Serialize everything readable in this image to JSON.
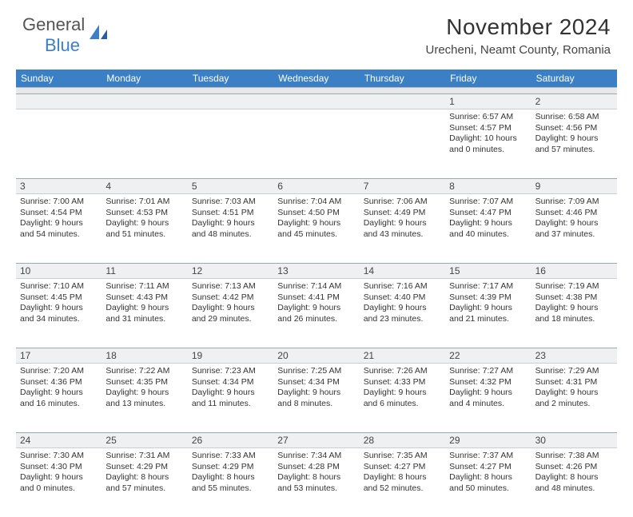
{
  "logo": {
    "word1": "General",
    "word2": "Blue"
  },
  "title": "November 2024",
  "location": "Urecheni, Neamt County, Romania",
  "colors": {
    "header_bg": "#3b7fc4",
    "daynum_bg": "#eef0f1",
    "spacer_bg": "#e8e8e8",
    "border": "#9aa"
  },
  "dow": [
    "Sunday",
    "Monday",
    "Tuesday",
    "Wednesday",
    "Thursday",
    "Friday",
    "Saturday"
  ],
  "weeks": [
    [
      {
        "n": "",
        "lines": [
          "",
          "",
          "",
          ""
        ]
      },
      {
        "n": "",
        "lines": [
          "",
          "",
          "",
          ""
        ]
      },
      {
        "n": "",
        "lines": [
          "",
          "",
          "",
          ""
        ]
      },
      {
        "n": "",
        "lines": [
          "",
          "",
          "",
          ""
        ]
      },
      {
        "n": "",
        "lines": [
          "",
          "",
          "",
          ""
        ]
      },
      {
        "n": "1",
        "lines": [
          "Sunrise: 6:57 AM",
          "Sunset: 4:57 PM",
          "Daylight: 10 hours",
          "and 0 minutes."
        ]
      },
      {
        "n": "2",
        "lines": [
          "Sunrise: 6:58 AM",
          "Sunset: 4:56 PM",
          "Daylight: 9 hours",
          "and 57 minutes."
        ]
      }
    ],
    [
      {
        "n": "3",
        "lines": [
          "Sunrise: 7:00 AM",
          "Sunset: 4:54 PM",
          "Daylight: 9 hours",
          "and 54 minutes."
        ]
      },
      {
        "n": "4",
        "lines": [
          "Sunrise: 7:01 AM",
          "Sunset: 4:53 PM",
          "Daylight: 9 hours",
          "and 51 minutes."
        ]
      },
      {
        "n": "5",
        "lines": [
          "Sunrise: 7:03 AM",
          "Sunset: 4:51 PM",
          "Daylight: 9 hours",
          "and 48 minutes."
        ]
      },
      {
        "n": "6",
        "lines": [
          "Sunrise: 7:04 AM",
          "Sunset: 4:50 PM",
          "Daylight: 9 hours",
          "and 45 minutes."
        ]
      },
      {
        "n": "7",
        "lines": [
          "Sunrise: 7:06 AM",
          "Sunset: 4:49 PM",
          "Daylight: 9 hours",
          "and 43 minutes."
        ]
      },
      {
        "n": "8",
        "lines": [
          "Sunrise: 7:07 AM",
          "Sunset: 4:47 PM",
          "Daylight: 9 hours",
          "and 40 minutes."
        ]
      },
      {
        "n": "9",
        "lines": [
          "Sunrise: 7:09 AM",
          "Sunset: 4:46 PM",
          "Daylight: 9 hours",
          "and 37 minutes."
        ]
      }
    ],
    [
      {
        "n": "10",
        "lines": [
          "Sunrise: 7:10 AM",
          "Sunset: 4:45 PM",
          "Daylight: 9 hours",
          "and 34 minutes."
        ]
      },
      {
        "n": "11",
        "lines": [
          "Sunrise: 7:11 AM",
          "Sunset: 4:43 PM",
          "Daylight: 9 hours",
          "and 31 minutes."
        ]
      },
      {
        "n": "12",
        "lines": [
          "Sunrise: 7:13 AM",
          "Sunset: 4:42 PM",
          "Daylight: 9 hours",
          "and 29 minutes."
        ]
      },
      {
        "n": "13",
        "lines": [
          "Sunrise: 7:14 AM",
          "Sunset: 4:41 PM",
          "Daylight: 9 hours",
          "and 26 minutes."
        ]
      },
      {
        "n": "14",
        "lines": [
          "Sunrise: 7:16 AM",
          "Sunset: 4:40 PM",
          "Daylight: 9 hours",
          "and 23 minutes."
        ]
      },
      {
        "n": "15",
        "lines": [
          "Sunrise: 7:17 AM",
          "Sunset: 4:39 PM",
          "Daylight: 9 hours",
          "and 21 minutes."
        ]
      },
      {
        "n": "16",
        "lines": [
          "Sunrise: 7:19 AM",
          "Sunset: 4:38 PM",
          "Daylight: 9 hours",
          "and 18 minutes."
        ]
      }
    ],
    [
      {
        "n": "17",
        "lines": [
          "Sunrise: 7:20 AM",
          "Sunset: 4:36 PM",
          "Daylight: 9 hours",
          "and 16 minutes."
        ]
      },
      {
        "n": "18",
        "lines": [
          "Sunrise: 7:22 AM",
          "Sunset: 4:35 PM",
          "Daylight: 9 hours",
          "and 13 minutes."
        ]
      },
      {
        "n": "19",
        "lines": [
          "Sunrise: 7:23 AM",
          "Sunset: 4:34 PM",
          "Daylight: 9 hours",
          "and 11 minutes."
        ]
      },
      {
        "n": "20",
        "lines": [
          "Sunrise: 7:25 AM",
          "Sunset: 4:34 PM",
          "Daylight: 9 hours",
          "and 8 minutes."
        ]
      },
      {
        "n": "21",
        "lines": [
          "Sunrise: 7:26 AM",
          "Sunset: 4:33 PM",
          "Daylight: 9 hours",
          "and 6 minutes."
        ]
      },
      {
        "n": "22",
        "lines": [
          "Sunrise: 7:27 AM",
          "Sunset: 4:32 PM",
          "Daylight: 9 hours",
          "and 4 minutes."
        ]
      },
      {
        "n": "23",
        "lines": [
          "Sunrise: 7:29 AM",
          "Sunset: 4:31 PM",
          "Daylight: 9 hours",
          "and 2 minutes."
        ]
      }
    ],
    [
      {
        "n": "24",
        "lines": [
          "Sunrise: 7:30 AM",
          "Sunset: 4:30 PM",
          "Daylight: 9 hours",
          "and 0 minutes."
        ]
      },
      {
        "n": "25",
        "lines": [
          "Sunrise: 7:31 AM",
          "Sunset: 4:29 PM",
          "Daylight: 8 hours",
          "and 57 minutes."
        ]
      },
      {
        "n": "26",
        "lines": [
          "Sunrise: 7:33 AM",
          "Sunset: 4:29 PM",
          "Daylight: 8 hours",
          "and 55 minutes."
        ]
      },
      {
        "n": "27",
        "lines": [
          "Sunrise: 7:34 AM",
          "Sunset: 4:28 PM",
          "Daylight: 8 hours",
          "and 53 minutes."
        ]
      },
      {
        "n": "28",
        "lines": [
          "Sunrise: 7:35 AM",
          "Sunset: 4:27 PM",
          "Daylight: 8 hours",
          "and 52 minutes."
        ]
      },
      {
        "n": "29",
        "lines": [
          "Sunrise: 7:37 AM",
          "Sunset: 4:27 PM",
          "Daylight: 8 hours",
          "and 50 minutes."
        ]
      },
      {
        "n": "30",
        "lines": [
          "Sunrise: 7:38 AM",
          "Sunset: 4:26 PM",
          "Daylight: 8 hours",
          "and 48 minutes."
        ]
      }
    ]
  ]
}
